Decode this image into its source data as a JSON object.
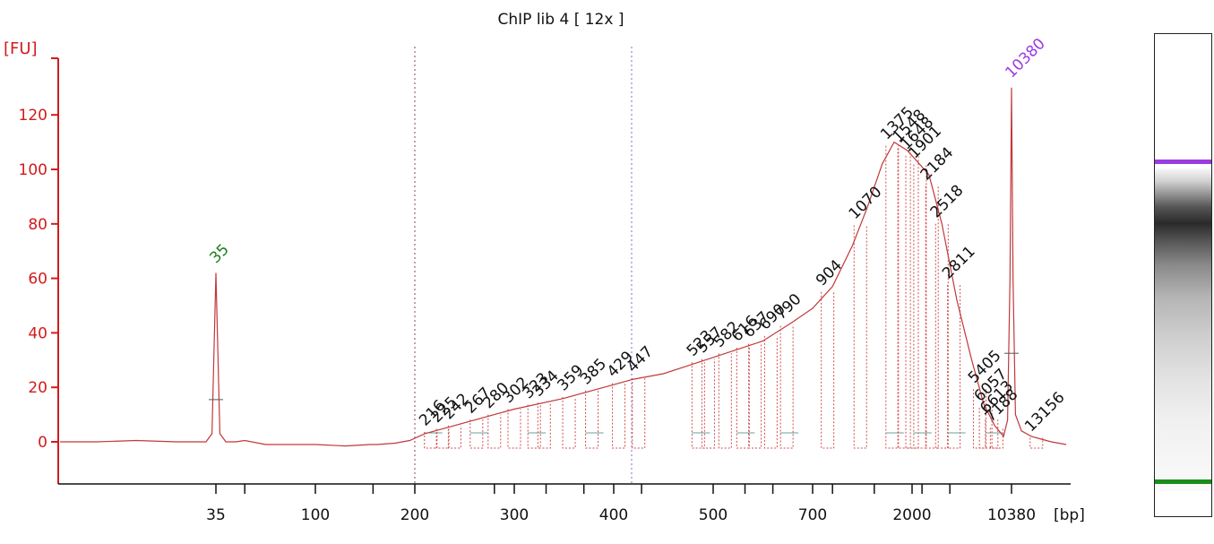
{
  "chart_data": {
    "type": "line",
    "title": "ChIP lib 4  [ 12x ]",
    "ylabel": "[FU]",
    "xunit": "[bp]",
    "ylim": [
      -15,
      135
    ],
    "y_ticks": [
      0,
      20,
      40,
      60,
      80,
      100,
      120
    ],
    "x_tick_labels": [
      {
        "label": "35",
        "pos": 0
      },
      {
        "label": "100",
        "pos": 1
      },
      {
        "label": "200",
        "pos": 2
      },
      {
        "label": "300",
        "pos": 3
      },
      {
        "label": "400",
        "pos": 4
      },
      {
        "label": "500",
        "pos": 5
      },
      {
        "label": "700",
        "pos": 6
      },
      {
        "label": "2000",
        "pos": 7
      },
      {
        "label": "10380",
        "pos": 8
      }
    ],
    "x_ticks_unlabeled": [
      0.29,
      1.58,
      2.8,
      3.32,
      3.7,
      4.28,
      5.32,
      5.6,
      6.2,
      6.62,
      7.1,
      7.38
    ],
    "region_markers_pos": [
      2.0,
      4.18
    ],
    "series": [
      {
        "color": "#c0393b",
        "x": [
          -1.6,
          -1.2,
          -0.8,
          -0.4,
          -0.1,
          -0.04,
          0.0,
          0.04,
          0.1,
          0.2,
          0.29,
          0.5,
          0.8,
          1.0,
          1.3,
          1.55,
          1.62,
          1.8,
          1.95,
          2.1,
          2.4,
          2.8,
          3.0,
          3.5,
          4.0,
          4.2,
          4.5,
          5.0,
          5.5,
          5.8,
          6.0,
          6.2,
          6.4,
          6.55,
          6.7,
          6.82,
          6.95,
          7.05,
          7.17,
          7.3,
          7.45,
          7.6,
          7.72,
          7.83,
          7.92,
          7.96,
          7.985,
          8.0,
          8.015,
          8.04,
          8.1,
          8.2,
          8.3,
          8.4,
          8.55
        ],
        "y": [
          0,
          0,
          0.5,
          0,
          0,
          3,
          62,
          3,
          0,
          0,
          0.5,
          -1,
          -1,
          -1,
          -1.5,
          -1,
          -1,
          -0.5,
          0.5,
          3,
          6,
          10,
          12,
          16,
          21,
          23,
          25,
          31,
          37,
          44,
          49,
          57,
          72,
          86,
          102,
          110,
          107,
          103,
          98,
          80,
          52,
          30,
          14,
          6,
          2,
          8,
          60,
          130,
          60,
          10,
          4,
          2,
          1,
          0,
          -1
        ]
      }
    ],
    "peaks": [
      {
        "label": "35",
        "x": 0,
        "y": 62,
        "color": "#1a7f1a"
      },
      {
        "label": "10380",
        "x": 8,
        "y": 130,
        "color": "#9b3be0"
      }
    ],
    "annotations": [
      {
        "label": "216",
        "pos": 2.16
      },
      {
        "label": "225",
        "pos": 2.28
      },
      {
        "label": "242",
        "pos": 2.4
      },
      {
        "label": "267",
        "pos": 2.62
      },
      {
        "label": "280",
        "pos": 2.8
      },
      {
        "label": "302",
        "pos": 3.0
      },
      {
        "label": "323",
        "pos": 3.2
      },
      {
        "label": "334",
        "pos": 3.3
      },
      {
        "label": "359",
        "pos": 3.55
      },
      {
        "label": "385",
        "pos": 3.78
      },
      {
        "label": "429",
        "pos": 4.05
      },
      {
        "label": "447",
        "pos": 4.25
      },
      {
        "label": "523",
        "pos": 4.85
      },
      {
        "label": "557",
        "pos": 4.95
      },
      {
        "label": "582",
        "pos": 5.12
      },
      {
        "label": "616",
        "pos": 5.3
      },
      {
        "label": "637",
        "pos": 5.42
      },
      {
        "label": "690",
        "pos": 5.58
      },
      {
        "label": "790",
        "pos": 5.74
      },
      {
        "label": "904",
        "pos": 6.15
      },
      {
        "label": "1070",
        "pos": 6.48
      },
      {
        "label": "1375",
        "pos": 6.8
      },
      {
        "label": "1548",
        "pos": 6.92
      },
      {
        "label": "1648",
        "pos": 7.0
      },
      {
        "label": "1901",
        "pos": 7.08
      },
      {
        "label": "2184",
        "pos": 7.2
      },
      {
        "label": "2518",
        "pos": 7.3
      },
      {
        "label": "2811",
        "pos": 7.42
      },
      {
        "label": "5405",
        "pos": 7.68
      },
      {
        "label": "6057",
        "pos": 7.74
      },
      {
        "label": "6613",
        "pos": 7.8
      },
      {
        "label": "7188",
        "pos": 7.85
      },
      {
        "label": "13156",
        "pos": 8.25
      }
    ]
  },
  "gel": {
    "upper_marker_color": "#9b3be0",
    "lower_marker_color": "#1a8c1a"
  }
}
